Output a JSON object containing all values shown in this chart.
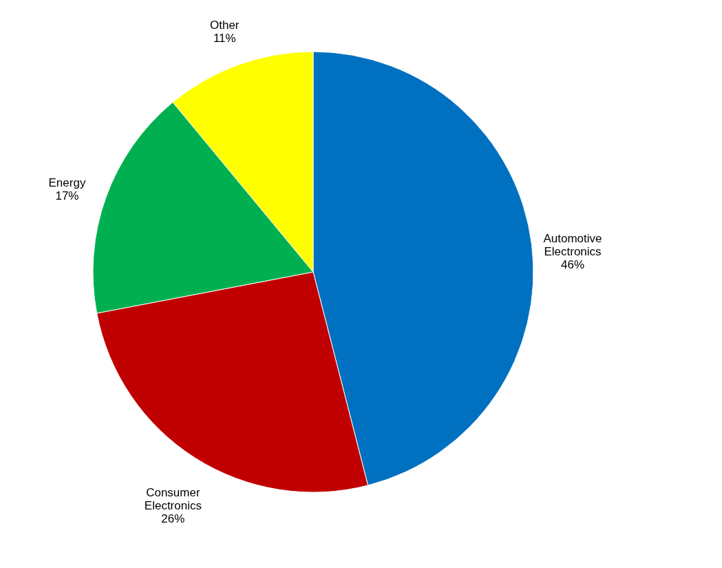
{
  "chart_data": {
    "type": "pie",
    "categories": [
      "Automotive Electronics",
      "Consumer Electronics",
      "Energy",
      "Other"
    ],
    "values": [
      46,
      26,
      17,
      11
    ],
    "colors": [
      "#0070c0",
      "#c00000",
      "#00b050",
      "#ffff00"
    ],
    "value_labels": [
      "46%",
      "26%",
      "17%",
      "11%"
    ],
    "legend": false
  }
}
